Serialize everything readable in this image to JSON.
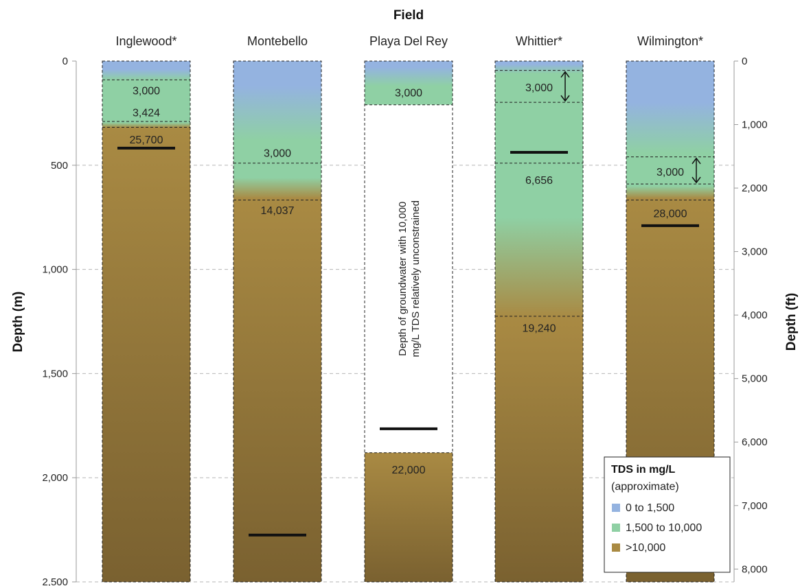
{
  "chart_data": {
    "type": "bar",
    "title": "",
    "xlabel": "Field",
    "ylabel_left": "Depth (m)",
    "ylabel_right": "Depth (ft)",
    "ylim_m": [
      0,
      2500
    ],
    "ylim_ft": [
      0,
      8202
    ],
    "yticks_m": [
      0,
      500,
      1000,
      1500,
      2000,
      2500
    ],
    "yticks_ft": [
      0,
      1000,
      2000,
      3000,
      4000,
      5000,
      6000,
      7000,
      8000
    ],
    "ytick_labels_m": [
      "0",
      "500",
      "1,000",
      "1,500",
      "2,000",
      "2,500"
    ],
    "ytick_labels_ft": [
      "0",
      "1,000",
      "2,000",
      "3,000",
      "4,000",
      "5,000",
      "6,000",
      "7,000",
      "8,000"
    ],
    "grid": true,
    "categories": [
      "Inglewood*",
      "Montebello",
      "Playa Del Rey",
      "Whittier*",
      "Wilmington*"
    ],
    "colors": {
      "low": "#94b3e0",
      "mid": "#8fd0a4",
      "high": "#a98a43",
      "high_dark": "#7a6130",
      "unconstrained": "#ffffff",
      "marker": "#111111"
    },
    "fields": [
      {
        "name": "Inglewood*",
        "gradient": [
          {
            "depth": 0,
            "zone": "low"
          },
          {
            "depth": 40,
            "zone": "low"
          },
          {
            "depth": 90,
            "zone": "mid"
          },
          {
            "depth": 295,
            "zone": "mid"
          },
          {
            "depth": 320,
            "zone": "high"
          },
          {
            "depth": 2500,
            "zone": "high_dark"
          }
        ],
        "boundaries": [
          90,
          290,
          318
        ],
        "labels": [
          {
            "text": "3,000",
            "depth": 140
          },
          {
            "text": "3,424",
            "depth": 245
          },
          {
            "text": "25,700",
            "depth": 375
          }
        ],
        "marker_depth": 418,
        "white_zone": null
      },
      {
        "name": "Montebello",
        "gradient": [
          {
            "depth": 0,
            "zone": "low"
          },
          {
            "depth": 120,
            "zone": "low"
          },
          {
            "depth": 380,
            "zone": "mid"
          },
          {
            "depth": 560,
            "zone": "mid"
          },
          {
            "depth": 660,
            "zone": "high"
          },
          {
            "depth": 2500,
            "zone": "high_dark"
          }
        ],
        "boundaries": [
          490,
          667
        ],
        "labels": [
          {
            "text": "3,000",
            "depth": 440
          },
          {
            "text": "14,037",
            "depth": 715
          }
        ],
        "marker_depth": 2275,
        "white_zone": null
      },
      {
        "name": "Playa Del Rey",
        "gradient": [
          {
            "depth": 0,
            "zone": "low"
          },
          {
            "depth": 30,
            "zone": "low"
          },
          {
            "depth": 120,
            "zone": "mid"
          },
          {
            "depth": 210,
            "zone": "mid"
          }
        ],
        "lower_gradient": [
          {
            "depth": 1880,
            "zone": "high"
          },
          {
            "depth": 2500,
            "zone": "high_dark"
          }
        ],
        "boundaries": [
          210,
          1880
        ],
        "labels": [
          {
            "text": "3,000",
            "depth": 150
          },
          {
            "text": "22,000",
            "depth": 1960
          }
        ],
        "marker_depth": 1765,
        "white_zone": [
          210,
          1880
        ],
        "note_lines": [
          "Depth of groundwater with 10,000",
          "mg/L TDS relatively unconstrained"
        ],
        "note_depth": 1045
      },
      {
        "name": "Whittier*",
        "gradient": [
          {
            "depth": 0,
            "zone": "low"
          },
          {
            "depth": 15,
            "zone": "low"
          },
          {
            "depth": 60,
            "zone": "mid"
          },
          {
            "depth": 750,
            "zone": "mid"
          },
          {
            "depth": 1230,
            "zone": "high"
          },
          {
            "depth": 2500,
            "zone": "high_dark"
          }
        ],
        "boundaries": [
          45,
          198,
          490,
          1225
        ],
        "labels": [
          {
            "text": "3,000",
            "depth": 125
          },
          {
            "text": "6,656",
            "depth": 570
          },
          {
            "text": "19,240",
            "depth": 1280
          }
        ],
        "range_arrow": [
          45,
          198
        ],
        "marker_depth": 438,
        "white_zone": null
      },
      {
        "name": "Wilmington*",
        "gradient": [
          {
            "depth": 0,
            "zone": "low"
          },
          {
            "depth": 200,
            "zone": "low"
          },
          {
            "depth": 440,
            "zone": "mid"
          },
          {
            "depth": 600,
            "zone": "mid"
          },
          {
            "depth": 660,
            "zone": "high"
          },
          {
            "depth": 2500,
            "zone": "high_dark"
          }
        ],
        "boundaries": [
          460,
          590,
          667
        ],
        "labels": [
          {
            "text": "3,000",
            "depth": 530
          },
          {
            "text": "28,000",
            "depth": 730
          }
        ],
        "range_arrow": [
          460,
          590
        ],
        "marker_depth": 790,
        "white_zone": null
      }
    ],
    "legend": {
      "title": "TDS in mg/L",
      "subtitle": "(approximate)",
      "items": [
        {
          "label": "0 to 1,500",
          "zone": "low"
        },
        {
          "label": "1,500 to 10,000",
          "zone": "mid"
        },
        {
          "label": ">10,000",
          "zone": "high"
        }
      ],
      "placement": "bottom-right"
    }
  }
}
